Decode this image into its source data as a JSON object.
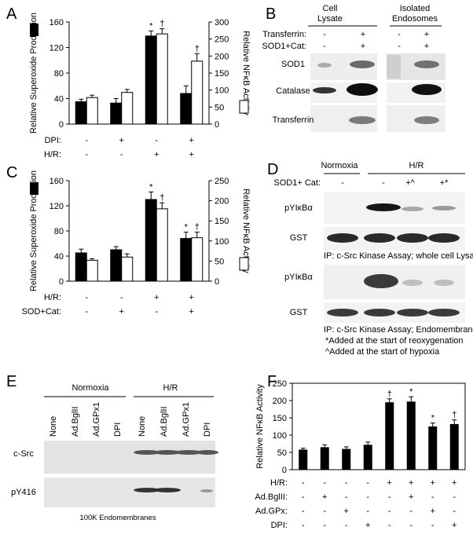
{
  "panel_letters": {
    "a": "A",
    "b": "B",
    "c": "C",
    "d": "D",
    "e": "E",
    "f": "F"
  },
  "chart_data": [
    {
      "panel": "A",
      "type": "bar",
      "ylabel_left": "Relative Superoxide Production",
      "ylabel_right": "Relative NFκB Activity",
      "yticks_left": [
        "0",
        "40",
        "80",
        "120",
        "160"
      ],
      "ylim_left": [
        0,
        160
      ],
      "yticks_right": [
        "0",
        "50",
        "100",
        "150",
        "200",
        "250",
        "300"
      ],
      "ylim_right": [
        0,
        300
      ],
      "conditions": [
        {
          "label": "DPI:",
          "values": [
            "-",
            "+",
            "-",
            "+"
          ]
        },
        {
          "label": "H/R:",
          "values": [
            "-",
            "-",
            "+",
            "+"
          ]
        }
      ],
      "series": [
        {
          "name": "Superoxide",
          "color": "#000000",
          "axis": "left",
          "values": [
            35,
            33,
            138,
            48
          ],
          "errors": [
            4,
            7,
            8,
            12
          ],
          "marks": [
            "",
            "",
            "*",
            ""
          ]
        },
        {
          "name": "NFκB",
          "color": "#ffffff",
          "axis": "right",
          "values": [
            78,
            93,
            265,
            185
          ],
          "errors": [
            7,
            9,
            15,
            22
          ],
          "marks": [
            "",
            "",
            "†",
            "†"
          ]
        }
      ]
    },
    {
      "panel": "C",
      "type": "bar",
      "ylabel_left": "Relative Superoxide Production",
      "ylabel_right": "Relative NFκB Activity",
      "yticks_left": [
        "0",
        "40",
        "80",
        "120",
        "160"
      ],
      "ylim_left": [
        0,
        160
      ],
      "yticks_right": [
        "0",
        "50",
        "100",
        "150",
        "200",
        "250"
      ],
      "ylim_right": [
        0,
        250
      ],
      "conditions": [
        {
          "label": "H/R:",
          "values": [
            "-",
            "-",
            "+",
            "+"
          ]
        },
        {
          "label": "SOD+Cat:",
          "values": [
            "-",
            "+",
            "-",
            "+"
          ]
        }
      ],
      "series": [
        {
          "name": "Superoxide",
          "color": "#000000",
          "axis": "left",
          "values": [
            45,
            50,
            130,
            68
          ],
          "errors": [
            6,
            5,
            12,
            10
          ],
          "marks": [
            "",
            "",
            "*",
            "*"
          ]
        },
        {
          "name": "NFκB",
          "color": "#ffffff",
          "axis": "right",
          "values": [
            52,
            60,
            180,
            108
          ],
          "errors": [
            4,
            8,
            15,
            14
          ],
          "marks": [
            "",
            "",
            "†",
            "†"
          ]
        }
      ]
    },
    {
      "panel": "F",
      "type": "bar",
      "ylabel": "Relative NFκB Activity",
      "yticks": [
        "0",
        "50",
        "100",
        "150",
        "200",
        "250"
      ],
      "ylim": [
        0,
        250
      ],
      "conditions": [
        {
          "label": "H/R:",
          "values": [
            "-",
            "-",
            "-",
            "-",
            "+",
            "+",
            "+",
            "+"
          ]
        },
        {
          "label": "Ad.BglII:",
          "values": [
            "-",
            "+",
            "-",
            "-",
            "-",
            "+",
            "-",
            "-"
          ]
        },
        {
          "label": "Ad.GPx:",
          "values": [
            "-",
            "-",
            "+",
            "-",
            "-",
            "-",
            "+",
            "-"
          ]
        },
        {
          "label": "DPI:",
          "values": [
            "-",
            "-",
            "-",
            "+",
            "-",
            "-",
            "-",
            "+"
          ]
        }
      ],
      "series": [
        {
          "name": "NFκB",
          "color": "#000000",
          "values": [
            58,
            65,
            60,
            72,
            195,
            197,
            125,
            132
          ],
          "errors": [
            4,
            7,
            6,
            8,
            10,
            14,
            10,
            12
          ],
          "marks": [
            "",
            "",
            "",
            "",
            "†",
            "*",
            "*",
            "†"
          ]
        }
      ]
    }
  ],
  "panel_b": {
    "group_labels": [
      {
        "line1": "Cell",
        "line2": "Lysate"
      },
      {
        "line1": "Isolated",
        "line2": "Endosomes"
      }
    ],
    "treatments": [
      {
        "label": "Transferrin:",
        "values": [
          "-",
          "+",
          "-",
          "+"
        ]
      },
      {
        "label": "SOD1+Cat:",
        "values": [
          "-",
          "+",
          "-",
          "+"
        ]
      }
    ],
    "blot_labels": [
      "SOD1",
      "Catalase",
      "Transferrin"
    ]
  },
  "panel_d": {
    "group_labels": [
      "Normoxia",
      "H/R"
    ],
    "treatment_label": "SOD1+ Cat:",
    "treatment_values": [
      "-",
      "-",
      "+^",
      "+*"
    ],
    "blot_labels": [
      "pYIκBα",
      "GST",
      "pYIκBα",
      "GST"
    ],
    "caption1": "IP: c-Src  Kinase Assay; whole cell Lysates",
    "caption2": "IP: c-Src  Kinase Assay; Endomembranes",
    "note1": "*Added at the start of reoxygenation",
    "note2": "^Added at the start of hypoxia"
  },
  "panel_e": {
    "group_labels": [
      "Normoxia",
      "H/R"
    ],
    "lane_labels": [
      "None",
      "Ad.BglII",
      "Ad.GPx1",
      "DPI",
      "None",
      "Ad.BglII",
      "Ad.GPx1",
      "DPI"
    ],
    "blot_labels": [
      "c-Src",
      "pY416"
    ],
    "caption": "100K Endomembranes"
  }
}
